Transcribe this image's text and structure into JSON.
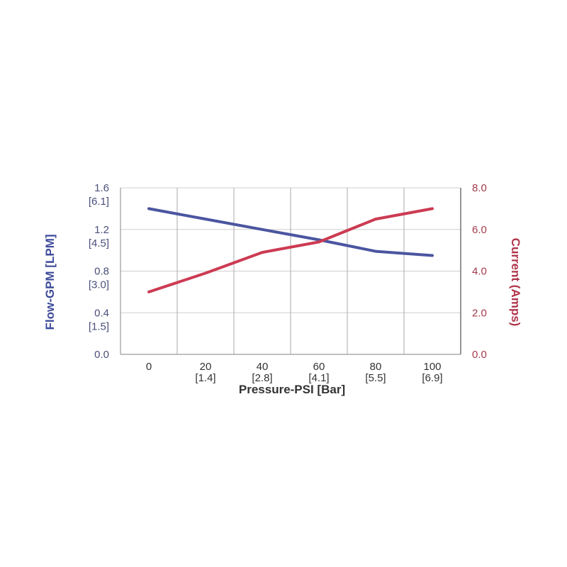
{
  "chart_data": {
    "type": "line",
    "title": "",
    "xlabel": "Pressure-PSI [Bar]",
    "x": [
      0,
      20,
      40,
      60,
      80,
      100
    ],
    "x_tick_labels": [
      {
        "primary": "0",
        "secondary": ""
      },
      {
        "primary": "20",
        "secondary": "[1.4]"
      },
      {
        "primary": "40",
        "secondary": "[2.8]"
      },
      {
        "primary": "60",
        "secondary": "[4.1]"
      },
      {
        "primary": "80",
        "secondary": "[5.5]"
      },
      {
        "primary": "100",
        "secondary": "[6.9]"
      }
    ],
    "xlim": [
      -10,
      110
    ],
    "y_left": {
      "label": "Flow-GPM [LPM]",
      "range": [
        0,
        1.6
      ],
      "ticks": [
        {
          "primary": "1.6",
          "secondary": "[6.1]"
        },
        {
          "primary": "1.2",
          "secondary": "[4.5]"
        },
        {
          "primary": "0.8",
          "secondary": "[3.0]"
        },
        {
          "primary": "0.4",
          "secondary": "[1.5]"
        },
        {
          "primary": "0.0",
          "secondary": ""
        }
      ]
    },
    "y_right": {
      "label": "Current (Amps)",
      "range": [
        0,
        8
      ],
      "ticks": [
        "8.0",
        "6.0",
        "4.0",
        "2.0",
        "0.0"
      ]
    },
    "grid": true,
    "series": [
      {
        "axis": "left",
        "color": "#4b55a0",
        "values": [
          1.4,
          1.3,
          1.2,
          1.1,
          0.99,
          0.95
        ]
      },
      {
        "axis": "right",
        "color": "#cc3b52",
        "values": [
          3.0,
          3.9,
          4.9,
          5.4,
          6.5,
          7.0
        ]
      }
    ]
  }
}
